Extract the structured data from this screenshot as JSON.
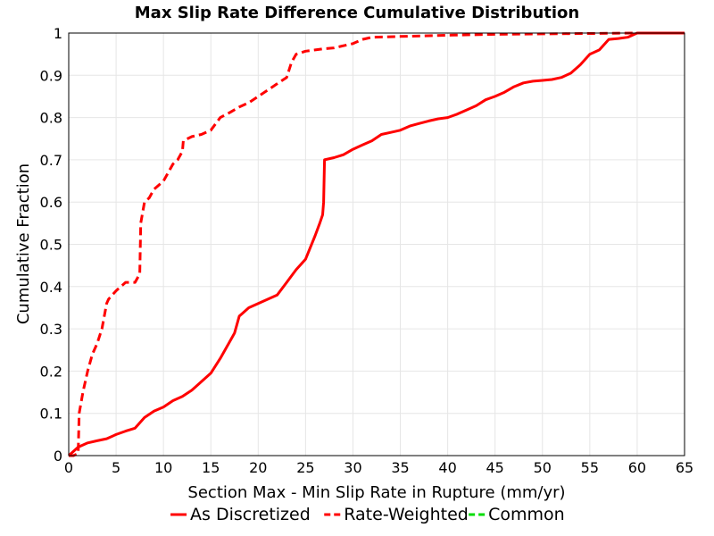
{
  "chart_data": {
    "type": "line",
    "title": "Max Slip Rate Difference Cumulative Distribution",
    "xlabel": "Section Max - Min Slip Rate in Rupture (mm/yr)",
    "ylabel": "Cumulative Fraction",
    "xlim": [
      0,
      65
    ],
    "ylim": [
      0,
      1
    ],
    "xticks": [
      0,
      5,
      10,
      15,
      20,
      25,
      30,
      35,
      40,
      45,
      50,
      55,
      60,
      65
    ],
    "yticks": [
      0,
      0.1,
      0.2,
      0.3,
      0.4,
      0.5,
      0.6,
      0.7,
      0.8,
      0.9,
      1
    ],
    "grid": true,
    "legend_position": "bottom",
    "series": [
      {
        "name": "As Discretized",
        "color": "#ff0000",
        "style": "solid",
        "x": [
          0,
          0.5,
          1,
          2,
          3,
          4,
          5,
          6,
          7,
          8,
          9,
          10,
          11,
          12,
          13,
          14,
          15,
          16,
          17,
          17.5,
          18,
          18.5,
          19,
          20,
          21,
          22,
          23,
          24,
          25,
          26,
          26.5,
          26.8,
          26.9,
          27,
          28,
          29,
          30,
          31,
          32,
          33,
          34,
          35,
          36,
          37,
          38,
          39,
          40,
          41,
          42,
          43,
          44,
          45,
          46,
          47,
          48,
          49,
          50,
          51,
          52,
          53,
          54,
          55,
          56,
          57,
          58,
          59,
          60,
          61,
          62,
          63,
          64,
          65
        ],
        "y": [
          0,
          0.01,
          0.02,
          0.03,
          0.035,
          0.04,
          0.05,
          0.058,
          0.065,
          0.09,
          0.105,
          0.115,
          0.13,
          0.14,
          0.155,
          0.175,
          0.195,
          0.23,
          0.27,
          0.29,
          0.33,
          0.34,
          0.35,
          0.36,
          0.37,
          0.38,
          0.41,
          0.44,
          0.465,
          0.52,
          0.55,
          0.57,
          0.6,
          0.7,
          0.705,
          0.712,
          0.725,
          0.735,
          0.745,
          0.76,
          0.765,
          0.77,
          0.78,
          0.786,
          0.792,
          0.797,
          0.8,
          0.808,
          0.818,
          0.828,
          0.842,
          0.85,
          0.86,
          0.873,
          0.882,
          0.886,
          0.888,
          0.89,
          0.895,
          0.905,
          0.925,
          0.95,
          0.96,
          0.985,
          0.987,
          0.99,
          1,
          1,
          1,
          1,
          1,
          1
        ]
      },
      {
        "name": "Rate-Weighted",
        "color": "#ff0000",
        "style": "dashed",
        "x": [
          0,
          0.5,
          1,
          1.1,
          1.5,
          2,
          2.5,
          3,
          3.5,
          4,
          4.2,
          5,
          6,
          7,
          7.5,
          7.6,
          8,
          8.5,
          9,
          10,
          10.5,
          11,
          11.5,
          12,
          12.1,
          13,
          14,
          15,
          15.5,
          16,
          17,
          18,
          19,
          20,
          21,
          22,
          23,
          23.5,
          24,
          25,
          26,
          27,
          28,
          29,
          30,
          31,
          32,
          35,
          40,
          45,
          50,
          55,
          60,
          65
        ],
        "y": [
          0,
          0,
          0.005,
          0.1,
          0.15,
          0.2,
          0.24,
          0.265,
          0.3,
          0.36,
          0.37,
          0.39,
          0.41,
          0.41,
          0.43,
          0.55,
          0.6,
          0.61,
          0.63,
          0.65,
          0.67,
          0.69,
          0.7,
          0.72,
          0.745,
          0.755,
          0.76,
          0.77,
          0.785,
          0.8,
          0.812,
          0.825,
          0.835,
          0.85,
          0.865,
          0.88,
          0.895,
          0.93,
          0.95,
          0.957,
          0.96,
          0.963,
          0.965,
          0.97,
          0.975,
          0.985,
          0.99,
          0.992,
          0.995,
          0.997,
          0.998,
          0.999,
          1,
          1
        ]
      },
      {
        "name": "Common",
        "color": "#00dd00",
        "style": "dashed",
        "x": [],
        "y": []
      }
    ]
  }
}
